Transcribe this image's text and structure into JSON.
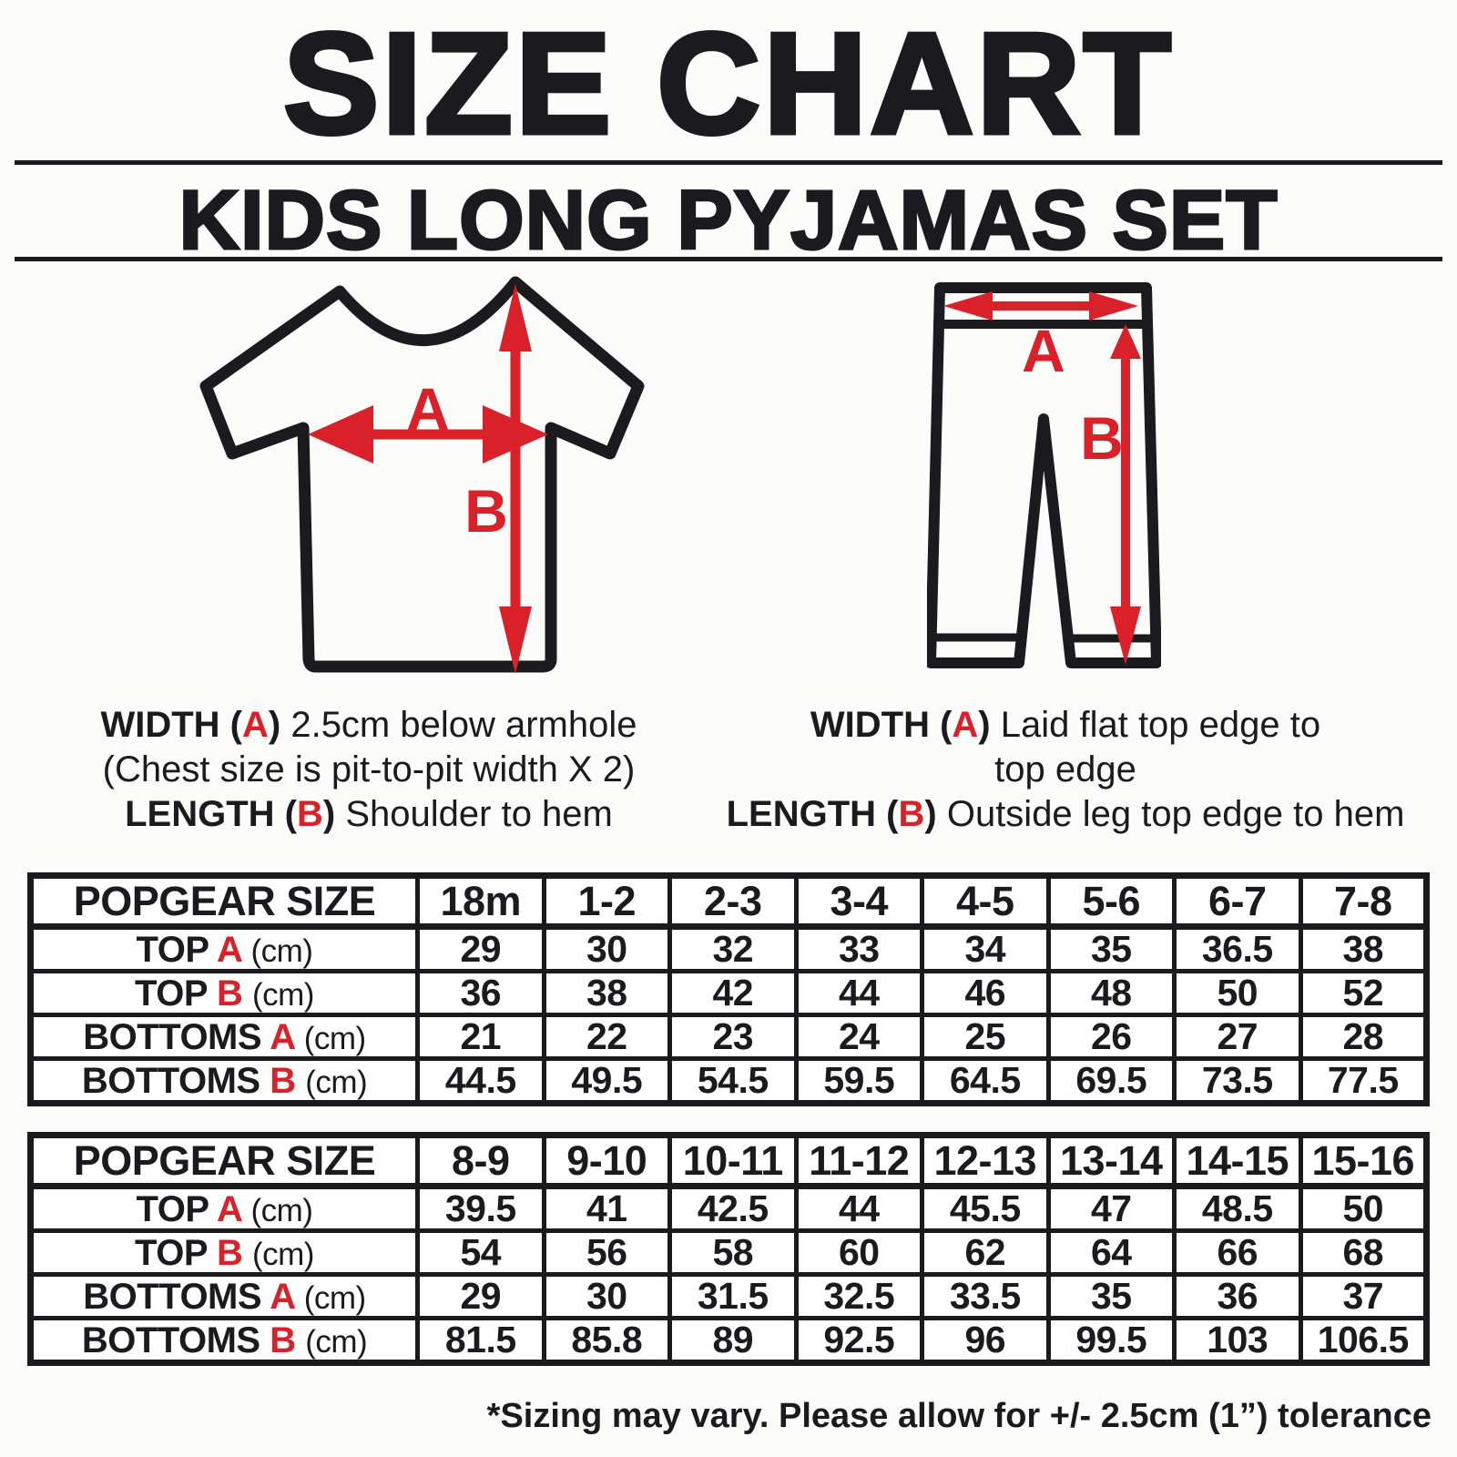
{
  "title": "SIZE CHART",
  "subtitle": "KIDS LONG PYJAMAS SET",
  "colors": {
    "ink": "#1b1b1f",
    "red": "#da2028",
    "bg": "#fcfcfb"
  },
  "diagrams": {
    "top_garment": {
      "letter_a": "A",
      "letter_b": "B"
    },
    "bottom_garment": {
      "letter_a": "A",
      "letter_b": "B"
    }
  },
  "notes": {
    "top": {
      "width": {
        "prefix": "WIDTH (",
        "letter": "A",
        "suffix": ")",
        "text": "2.5cm below armhole"
      },
      "chest_note": "(Chest size is pit-to-pit width X 2)",
      "length": {
        "prefix": "LENGTH (",
        "letter": "B",
        "suffix": ")",
        "text": "Shoulder to hem"
      }
    },
    "bottom": {
      "width": {
        "prefix": "WIDTH (",
        "letter": "A",
        "suffix": ")",
        "text": "Laid flat top edge to",
        "text2": "top edge"
      },
      "length": {
        "prefix": "LENGTH (",
        "letter": "B",
        "suffix": ")",
        "text": "Outside leg top edge to hem"
      }
    }
  },
  "tables": [
    {
      "size_header": "POPGEAR SIZE",
      "sizes": [
        "18m",
        "1-2",
        "2-3",
        "3-4",
        "4-5",
        "5-6",
        "6-7",
        "7-8"
      ],
      "rows": [
        {
          "garment": "TOP",
          "letter": "A",
          "unit": "(cm)",
          "values": [
            "29",
            "30",
            "32",
            "33",
            "34",
            "35",
            "36.5",
            "38"
          ]
        },
        {
          "garment": "TOP",
          "letter": "B",
          "unit": "(cm)",
          "values": [
            "36",
            "38",
            "42",
            "44",
            "46",
            "48",
            "50",
            "52"
          ]
        },
        {
          "garment": "BOTTOMS",
          "letter": "A",
          "unit": "(cm)",
          "values": [
            "21",
            "22",
            "23",
            "24",
            "25",
            "26",
            "27",
            "28"
          ]
        },
        {
          "garment": "BOTTOMS",
          "letter": "B",
          "unit": "(cm)",
          "values": [
            "44.5",
            "49.5",
            "54.5",
            "59.5",
            "64.5",
            "69.5",
            "73.5",
            "77.5"
          ]
        }
      ]
    },
    {
      "size_header": "POPGEAR SIZE",
      "sizes": [
        "8-9",
        "9-10",
        "10-11",
        "11-12",
        "12-13",
        "13-14",
        "14-15",
        "15-16"
      ],
      "rows": [
        {
          "garment": "TOP",
          "letter": "A",
          "unit": "(cm)",
          "values": [
            "39.5",
            "41",
            "42.5",
            "44",
            "45.5",
            "47",
            "48.5",
            "50"
          ]
        },
        {
          "garment": "TOP",
          "letter": "B",
          "unit": "(cm)",
          "values": [
            "54",
            "56",
            "58",
            "60",
            "62",
            "64",
            "66",
            "68"
          ]
        },
        {
          "garment": "BOTTOMS",
          "letter": "A",
          "unit": "(cm)",
          "values": [
            "29",
            "30",
            "31.5",
            "32.5",
            "33.5",
            "35",
            "36",
            "37"
          ]
        },
        {
          "garment": "BOTTOMS",
          "letter": "B",
          "unit": "(cm)",
          "values": [
            "81.5",
            "85.8",
            "89",
            "92.5",
            "96",
            "99.5",
            "103",
            "106.5"
          ]
        }
      ]
    }
  ],
  "footnote": "*Sizing may vary. Please allow for +/- 2.5cm (1”) tolerance"
}
